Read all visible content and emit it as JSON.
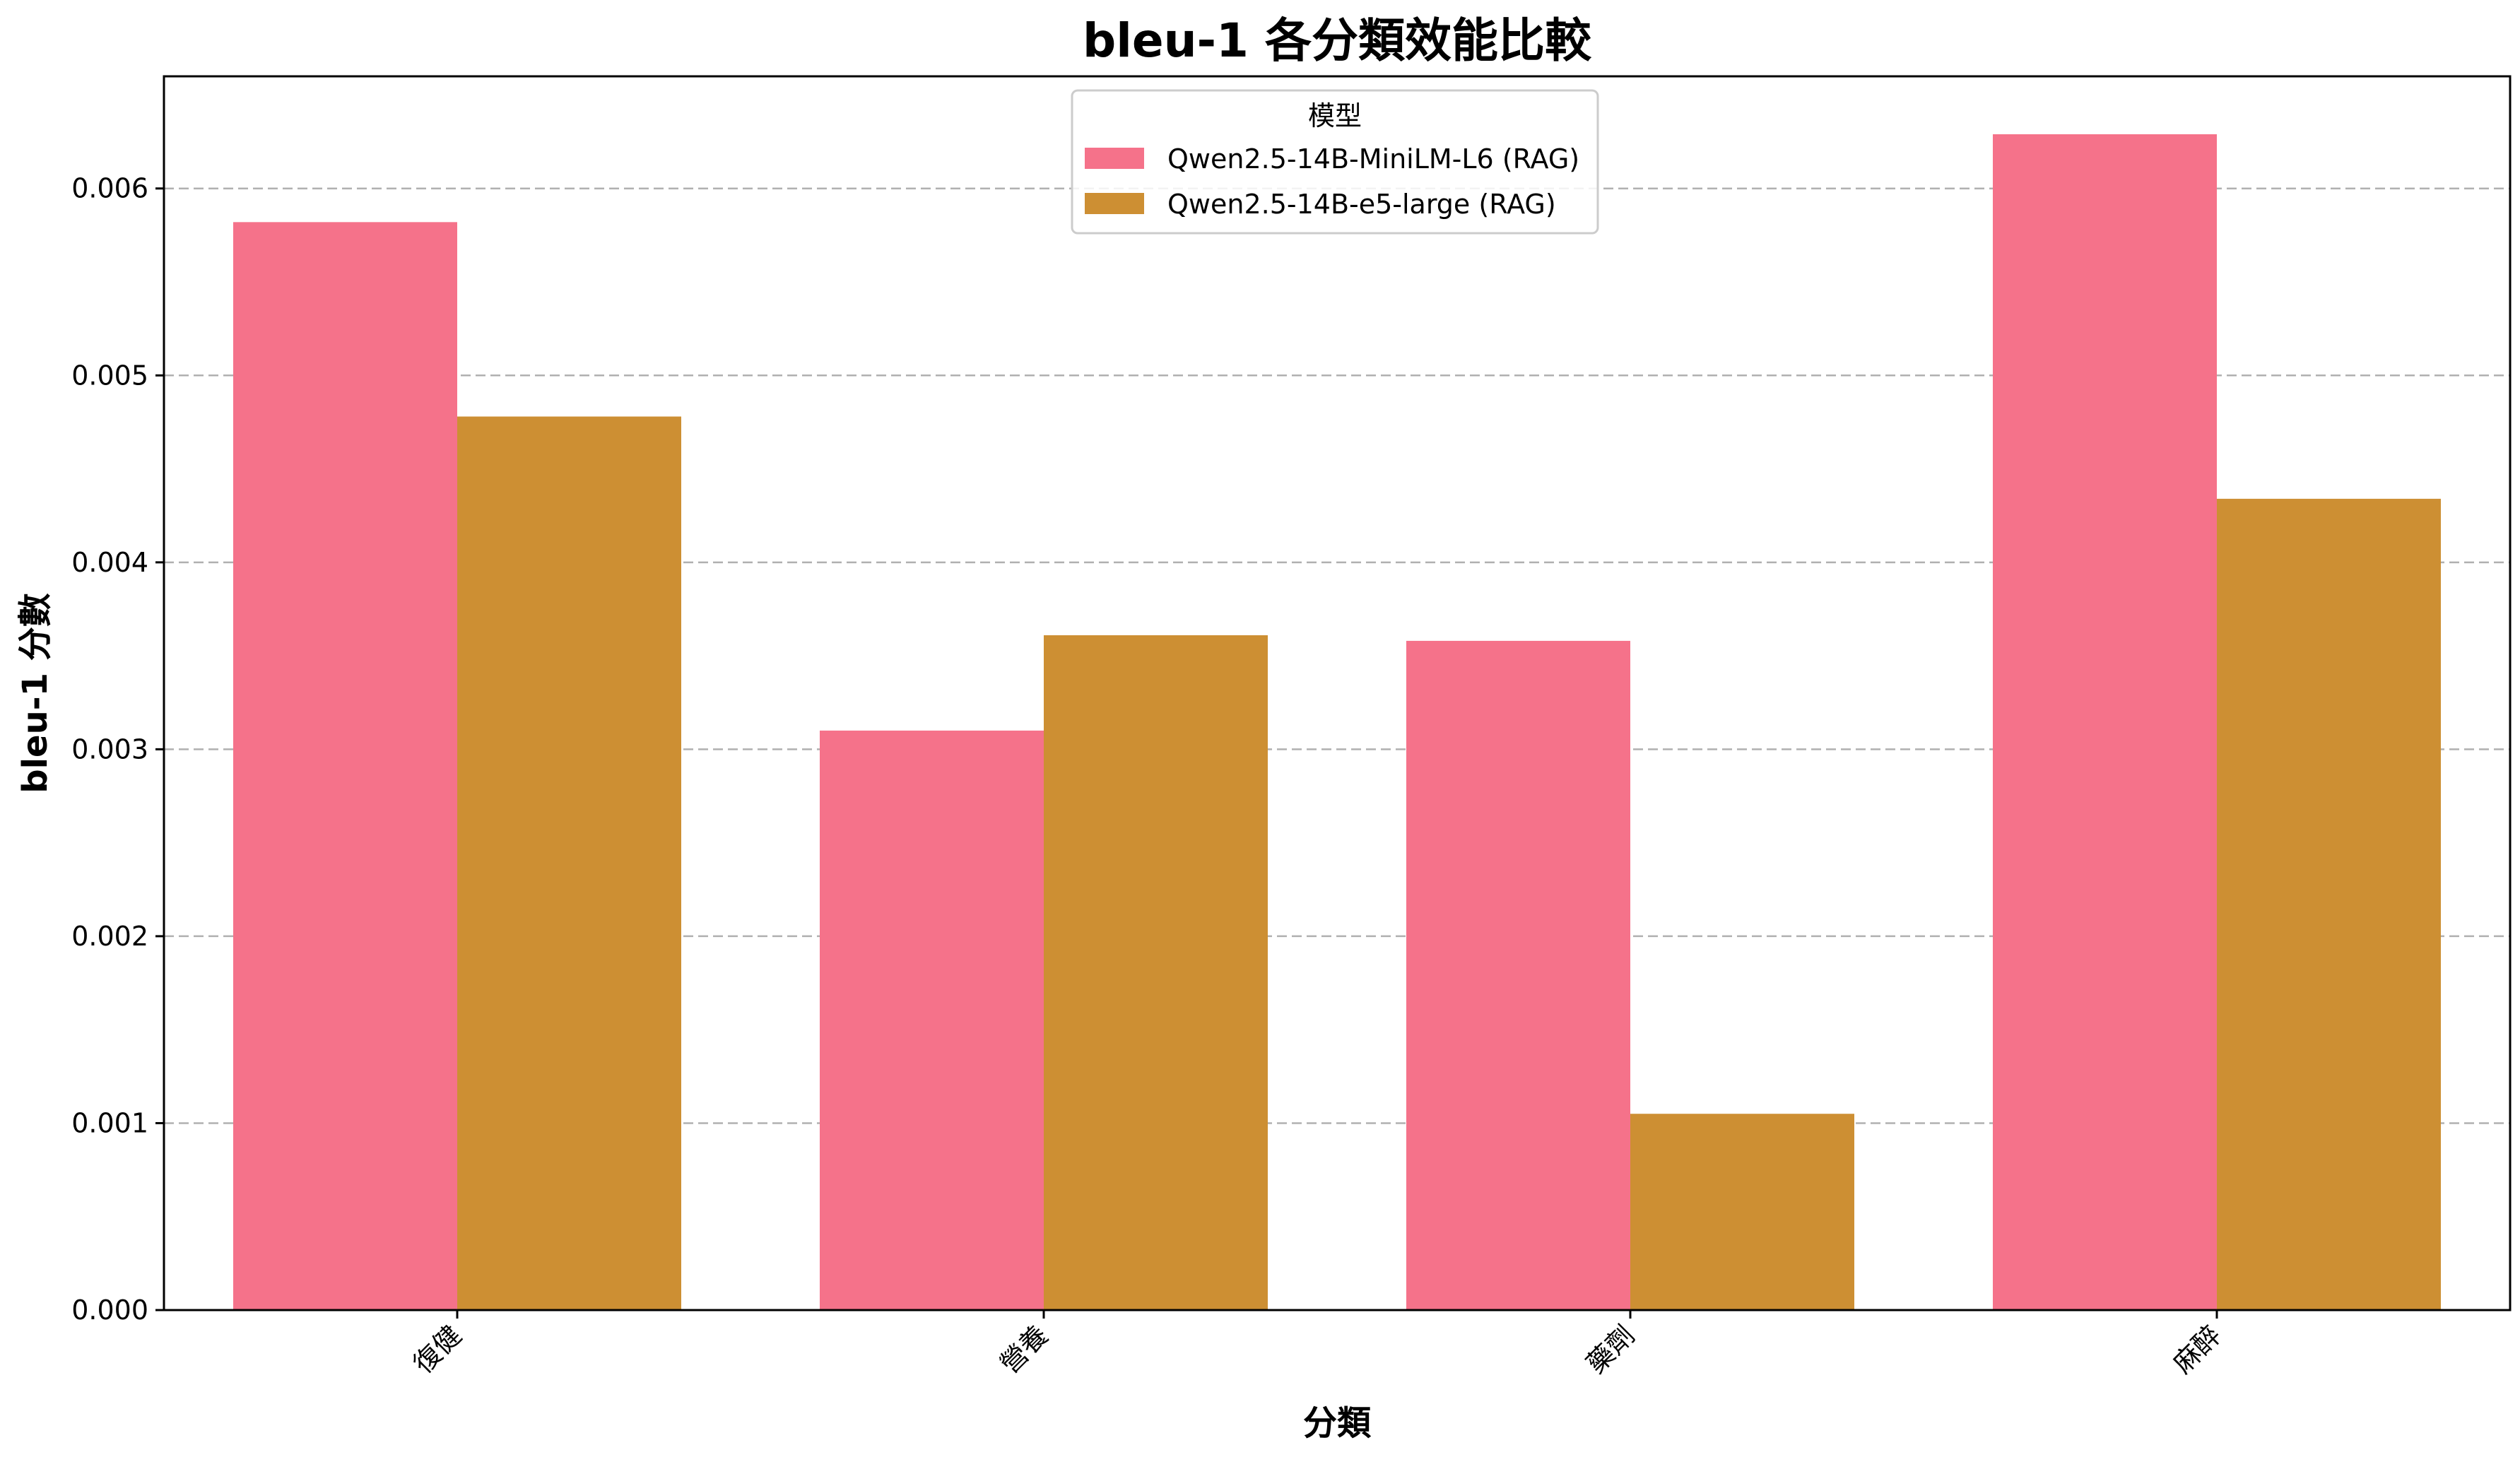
{
  "chart_data": {
    "type": "bar",
    "title": "bleu-1 各分類效能比較",
    "xlabel": "分類",
    "ylabel": "bleu-1 分數",
    "categories": [
      "復健",
      "營養",
      "藥劑",
      "麻醉"
    ],
    "series": [
      {
        "name": "Qwen2.5-14B-MiniLM-L6 (RAG)",
        "color": "#f5728a",
        "values": [
          0.00582,
          0.0031,
          0.00358,
          0.00629
        ]
      },
      {
        "name": "Qwen2.5-14B-e5-large (RAG)",
        "color": "#cd8f33",
        "values": [
          0.00478,
          0.00361,
          0.00105,
          0.00434
        ]
      }
    ],
    "ylim": [
      0,
      0.0066
    ],
    "yticks": [
      "0.000",
      "0.001",
      "0.002",
      "0.003",
      "0.004",
      "0.005",
      "0.006"
    ],
    "ytick_values": [
      0,
      0.001,
      0.002,
      0.003,
      0.004,
      0.005,
      0.006
    ],
    "grid": "horizontal dashed",
    "legend": {
      "title": "模型",
      "placement": "upper-center"
    }
  }
}
